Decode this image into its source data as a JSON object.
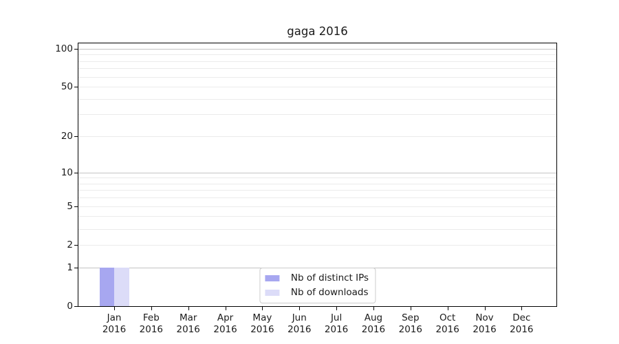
{
  "figure": {
    "background": "#ffffff"
  },
  "chart_data": {
    "type": "bar",
    "title": "gaga 2016",
    "categories": [
      "Jan 2016",
      "Feb 2016",
      "Mar 2016",
      "Apr 2016",
      "May 2016",
      "Jun 2016",
      "Jul 2016",
      "Aug 2016",
      "Sep 2016",
      "Oct 2016",
      "Nov 2016",
      "Dec 2016"
    ],
    "series": [
      {
        "name": "Nb of distinct IPs",
        "color": "#a7a7f0",
        "values": [
          1,
          0,
          0,
          0,
          0,
          0,
          0,
          0,
          0,
          0,
          0,
          0
        ]
      },
      {
        "name": "Nb of downloads",
        "color": "#dcdcf8",
        "values": [
          1,
          0,
          0,
          0,
          0,
          0,
          0,
          0,
          0,
          0,
          0,
          0
        ]
      }
    ],
    "xlabel": "",
    "ylabel": "",
    "yscale": "log1p",
    "ylim": [
      0,
      110
    ],
    "yticks": [
      0,
      1,
      2,
      5,
      10,
      20,
      50,
      100
    ],
    "major_gridlines": [
      1,
      10,
      100
    ],
    "minor_gridlines": [
      2,
      3,
      4,
      5,
      6,
      7,
      8,
      9,
      20,
      30,
      40,
      50,
      60,
      70,
      80,
      90
    ],
    "grid": true,
    "legend_position": "lower center"
  },
  "colors": {
    "major_grid": "#c3c3c3",
    "minor_grid": "#ebebeb",
    "spine": "#000000",
    "legend_border": "#cccccc",
    "text": "#1a1a1a"
  }
}
